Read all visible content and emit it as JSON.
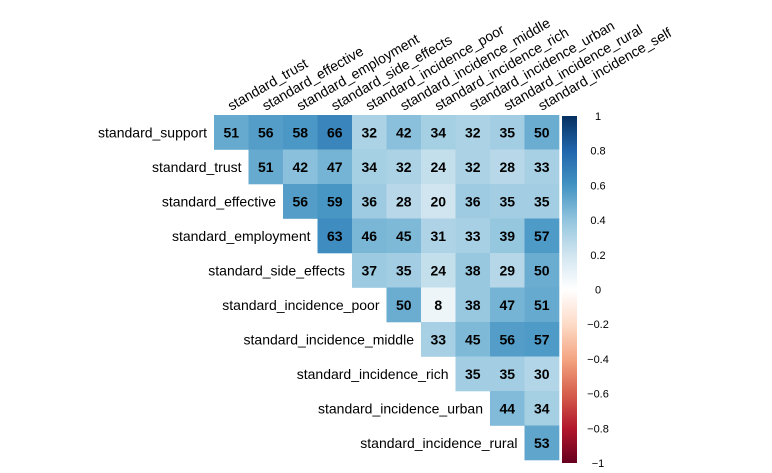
{
  "chart_data": {
    "type": "heatmap",
    "title": "",
    "layout": "upper-triangle correlation matrix",
    "row_labels": [
      "standard_support",
      "standard_trust",
      "standard_effective",
      "standard_employment",
      "standard_side_effects",
      "standard_incidence_poor",
      "standard_incidence_middle",
      "standard_incidence_rich",
      "standard_incidence_urban",
      "standard_incidence_rural"
    ],
    "col_labels": [
      "standard_trust",
      "standard_effective",
      "standard_employment",
      "standard_side_effects",
      "standard_incidence_poor",
      "standard_incidence_middle",
      "standard_incidence_rich",
      "standard_incidence_urban",
      "standard_incidence_rural",
      "standard_incidence_self"
    ],
    "values": [
      [
        51,
        56,
        58,
        66,
        32,
        42,
        34,
        32,
        35,
        50
      ],
      [
        null,
        51,
        42,
        47,
        34,
        32,
        24,
        32,
        28,
        33
      ],
      [
        null,
        null,
        56,
        59,
        36,
        28,
        20,
        36,
        35,
        35
      ],
      [
        null,
        null,
        null,
        63,
        46,
        45,
        31,
        33,
        39,
        57
      ],
      [
        null,
        null,
        null,
        null,
        37,
        35,
        24,
        38,
        29,
        50
      ],
      [
        null,
        null,
        null,
        null,
        null,
        50,
        8,
        38,
        47,
        51
      ],
      [
        null,
        null,
        null,
        null,
        null,
        null,
        33,
        45,
        56,
        57
      ],
      [
        null,
        null,
        null,
        null,
        null,
        null,
        null,
        35,
        35,
        30
      ],
      [
        null,
        null,
        null,
        null,
        null,
        null,
        null,
        null,
        44,
        34
      ],
      [
        null,
        null,
        null,
        null,
        null,
        null,
        null,
        null,
        null,
        53
      ]
    ],
    "value_scale": 100,
    "colorbar": {
      "range": [
        -1,
        1
      ],
      "ticks": [
        "1",
        "0.8",
        "0.6",
        "0.4",
        "0.2",
        "0",
        "−0.2",
        "−0.4",
        "−0.6",
        "−0.8",
        "−1"
      ],
      "tick_values": [
        1,
        0.8,
        0.6,
        0.4,
        0.2,
        0,
        -0.2,
        -0.4,
        -0.6,
        -0.8,
        -1
      ],
      "colors": [
        "#67001F",
        "#B2182B",
        "#D6604D",
        "#F4A582",
        "#FDDBC7",
        "#FFFFFF",
        "#D1E5F0",
        "#92C5DE",
        "#4393C3",
        "#2166AC",
        "#053061"
      ]
    }
  }
}
